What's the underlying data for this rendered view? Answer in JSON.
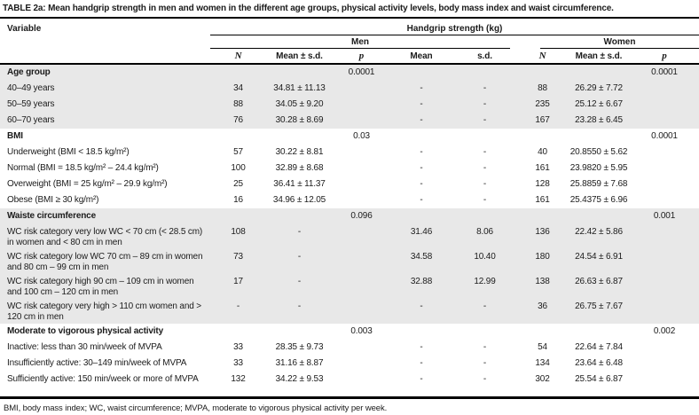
{
  "title": "TABLE 2a: Mean handgrip strength in men and women in the different age groups, physical activity levels, body mass index and waist circumference.",
  "footnote": "BMI, body mass index; WC, waist circumference; MVPA, moderate to vigorous physical activity per week.",
  "colors": {
    "shaded_row": "#e8e8e8",
    "rule": "#000000",
    "text": "#1b1b1b"
  },
  "header": {
    "variable": "Variable",
    "span_top": "Handgrip strength (kg)",
    "men": "Men",
    "women": "Women",
    "cols": [
      "N",
      "Mean ± s.d.",
      "p",
      "Mean",
      "s.d.",
      "N",
      "Mean ± s.d.",
      "p"
    ]
  },
  "rows": [
    {
      "label": "Age group",
      "type": "section",
      "shaded": true,
      "tall": false,
      "cells": [
        "",
        "",
        "0.0001",
        "",
        "",
        "",
        "",
        "0.0001"
      ]
    },
    {
      "label": "40–49 years",
      "type": "data",
      "shaded": true,
      "tall": false,
      "cells": [
        "34",
        "34.81 ± 11.13",
        "",
        "-",
        "-",
        "88",
        "26.29 ± 7.72",
        ""
      ]
    },
    {
      "label": "50–59 years",
      "type": "data",
      "shaded": true,
      "tall": false,
      "cells": [
        "88",
        "34.05 ± 9.20",
        "",
        "-",
        "-",
        "235",
        "25.12 ± 6.67",
        ""
      ]
    },
    {
      "label": "60–70 years",
      "type": "data",
      "shaded": true,
      "tall": false,
      "cells": [
        "76",
        "30.28 ± 8.69",
        "",
        "-",
        "-",
        "167",
        "23.28 ± 6.45",
        ""
      ]
    },
    {
      "label": "BMI",
      "type": "section",
      "shaded": false,
      "tall": false,
      "cells": [
        "",
        "",
        "0.03",
        "",
        "",
        "",
        "",
        "0.0001"
      ]
    },
    {
      "label": "Underweight (BMI < 18.5 kg/m²)",
      "type": "data",
      "shaded": false,
      "tall": false,
      "cells": [
        "57",
        "30.22 ± 8.81",
        "",
        "-",
        "-",
        "40",
        "20.8550 ± 5.62",
        ""
      ]
    },
    {
      "label": "Normal (BMI = 18.5 kg/m² – 24.4 kg/m²)",
      "type": "data",
      "shaded": false,
      "tall": false,
      "cells": [
        "100",
        "32.89 ± 8.68",
        "",
        "-",
        "-",
        "161",
        "23.9820 ± 5.95",
        ""
      ]
    },
    {
      "label": "Overweight (BMI = 25 kg/m² – 29.9 kg/m²)",
      "type": "data",
      "shaded": false,
      "tall": false,
      "cells": [
        "25",
        "36.41 ± 11.37",
        "",
        "-",
        "-",
        "128",
        "25.8859 ± 7.68",
        ""
      ]
    },
    {
      "label": "Obese (BMI ≥ 30 kg/m²)",
      "type": "data",
      "shaded": false,
      "tall": false,
      "cells": [
        "16",
        "34.96 ± 12.05",
        "",
        "-",
        "-",
        "161",
        "25.4375 ± 6.96",
        ""
      ]
    },
    {
      "label": "Waiste circumference",
      "type": "section",
      "shaded": true,
      "tall": false,
      "cells": [
        "",
        "",
        "0.096",
        "",
        "",
        "",
        "",
        "0.001"
      ]
    },
    {
      "label": "WC risk category very low WC < 70 cm (< 28.5 cm) in women and < 80 cm in men",
      "type": "data",
      "shaded": true,
      "tall": true,
      "cells": [
        "108",
        "-",
        "",
        "31.46",
        "8.06",
        "136",
        "22.42 ± 5.86",
        ""
      ]
    },
    {
      "label": "WC risk category low WC 70 cm – 89 cm in women and 80 cm – 99 cm in men",
      "type": "data",
      "shaded": true,
      "tall": true,
      "cells": [
        "73",
        "-",
        "",
        "34.58",
        "10.40",
        "180",
        "24.54 ± 6.91",
        ""
      ]
    },
    {
      "label": "WC risk category high 90 cm – 109 cm in women and 100 cm – 120 cm in men",
      "type": "data",
      "shaded": true,
      "tall": true,
      "cells": [
        "17",
        "-",
        "",
        "32.88",
        "12.99",
        "138",
        "26.63 ± 6.87",
        ""
      ]
    },
    {
      "label": "WC risk category very high > 110 cm women and > 120 cm in men",
      "type": "data",
      "shaded": true,
      "tall": true,
      "cells": [
        "-",
        "-",
        "",
        "-",
        "-",
        "36",
        "26.75 ± 7.67",
        ""
      ]
    },
    {
      "label": "Moderate to vigorous physical activity",
      "type": "section",
      "shaded": false,
      "tall": false,
      "cells": [
        "",
        "",
        "0.003",
        "",
        "",
        "",
        "",
        "0.002"
      ]
    },
    {
      "label": "Inactive: less than 30 min/week of MVPA",
      "type": "data",
      "shaded": false,
      "tall": false,
      "cells": [
        "33",
        "28.35 ± 9.73",
        "",
        "-",
        "-",
        "54",
        "22.64 ± 7.84",
        ""
      ]
    },
    {
      "label": "Insufficiently active: 30–149 min/week of MVPA",
      "type": "data",
      "shaded": false,
      "tall": false,
      "cells": [
        "33",
        "31.16 ± 8.87",
        "",
        "-",
        "-",
        "134",
        "23.64 ± 6.48",
        ""
      ]
    },
    {
      "label": "Sufficiently active: 150 min/week or more of MVPA",
      "type": "data",
      "shaded": false,
      "tall": true,
      "cells": [
        "132",
        "34.22 ± 9.53",
        "",
        "-",
        "-",
        "302",
        "25.54 ± 6.87",
        ""
      ]
    }
  ]
}
